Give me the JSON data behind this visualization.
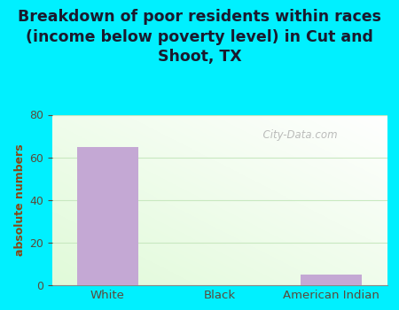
{
  "title": "Breakdown of poor residents within races\n(income below poverty level) in Cut and\nShoot, TX",
  "categories": [
    "White",
    "Black",
    "American Indian"
  ],
  "values": [
    65,
    0,
    5
  ],
  "bar_color": "#c4a8d4",
  "ylabel": "absolute numbers",
  "ylim": [
    0,
    80
  ],
  "yticks": [
    0,
    20,
    40,
    60,
    80
  ],
  "bg_color": "#00f0ff",
  "title_fontsize": 12.5,
  "watermark_text": "  City-Data.com",
  "bar_width": 0.55,
  "tick_label_color": "#5a4a3a",
  "ylabel_color": "#8b4513",
  "grid_color": "#c8e8c0"
}
